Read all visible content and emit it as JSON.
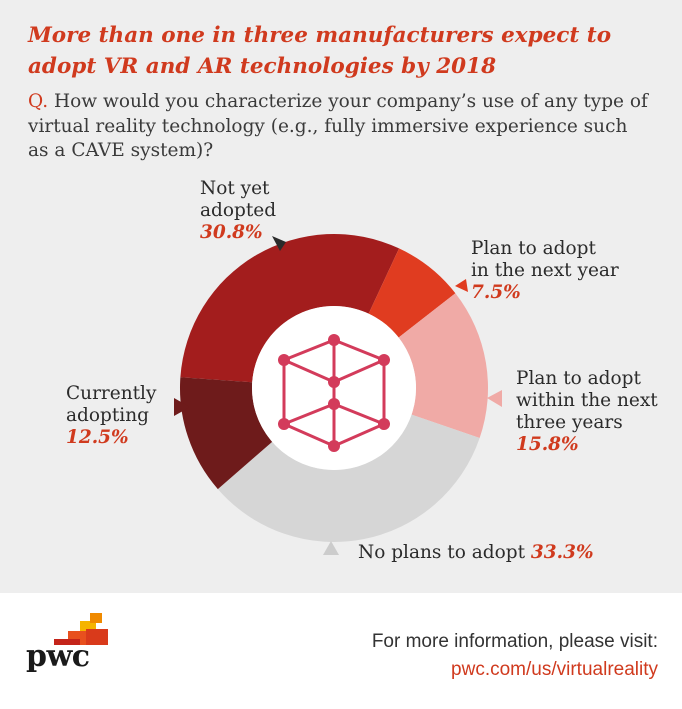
{
  "title": "More than one in three manufacturers expect to adopt VR and AR technologies by 2018",
  "question": {
    "prefix": "Q.",
    "text": "How would you characterize your company’s use of any type of virtual reality technology (e.g., fully immersive experience such as a CAVE system)?"
  },
  "chart_data": {
    "type": "pie",
    "title": "More than one in three manufacturers expect to adopt VR and AR technologies by 2018",
    "slices": [
      {
        "label": "Not yet adopted",
        "pct_label": "30.8%",
        "value": 30.8,
        "color": "#a31d1d"
      },
      {
        "label": "Plan to adopt in the next year",
        "pct_label": "7.5%",
        "value": 7.5,
        "color": "#e03c20"
      },
      {
        "label": "Plan to adopt within the next three years",
        "pct_label": "15.8%",
        "value": 15.8,
        "color": "#f0aaa6"
      },
      {
        "label": "No plans to adopt",
        "pct_label": "33.3%",
        "value": 33.3,
        "color": "#d6d6d6"
      },
      {
        "label": "Currently adopting",
        "pct_label": "12.5%",
        "value": 12.5,
        "color": "#6e1b1b"
      }
    ]
  },
  "labels": {
    "not_yet_line1": "Not yet",
    "not_yet_line2": "adopted",
    "next_year_line1": "Plan to adopt",
    "next_year_line2": "in the next year",
    "three_years_line1": "Plan to adopt",
    "three_years_line2": "within the next",
    "three_years_line3": "three years",
    "currently_line1": "Currently",
    "currently_line2": "adopting",
    "no_plans": "No plans to adopt"
  },
  "footer": {
    "logo_text": "pwc",
    "more_info": "For more information, please visit:",
    "url": "pwc.com/us/virtualreality"
  },
  "icon": "vr-cube-icon"
}
